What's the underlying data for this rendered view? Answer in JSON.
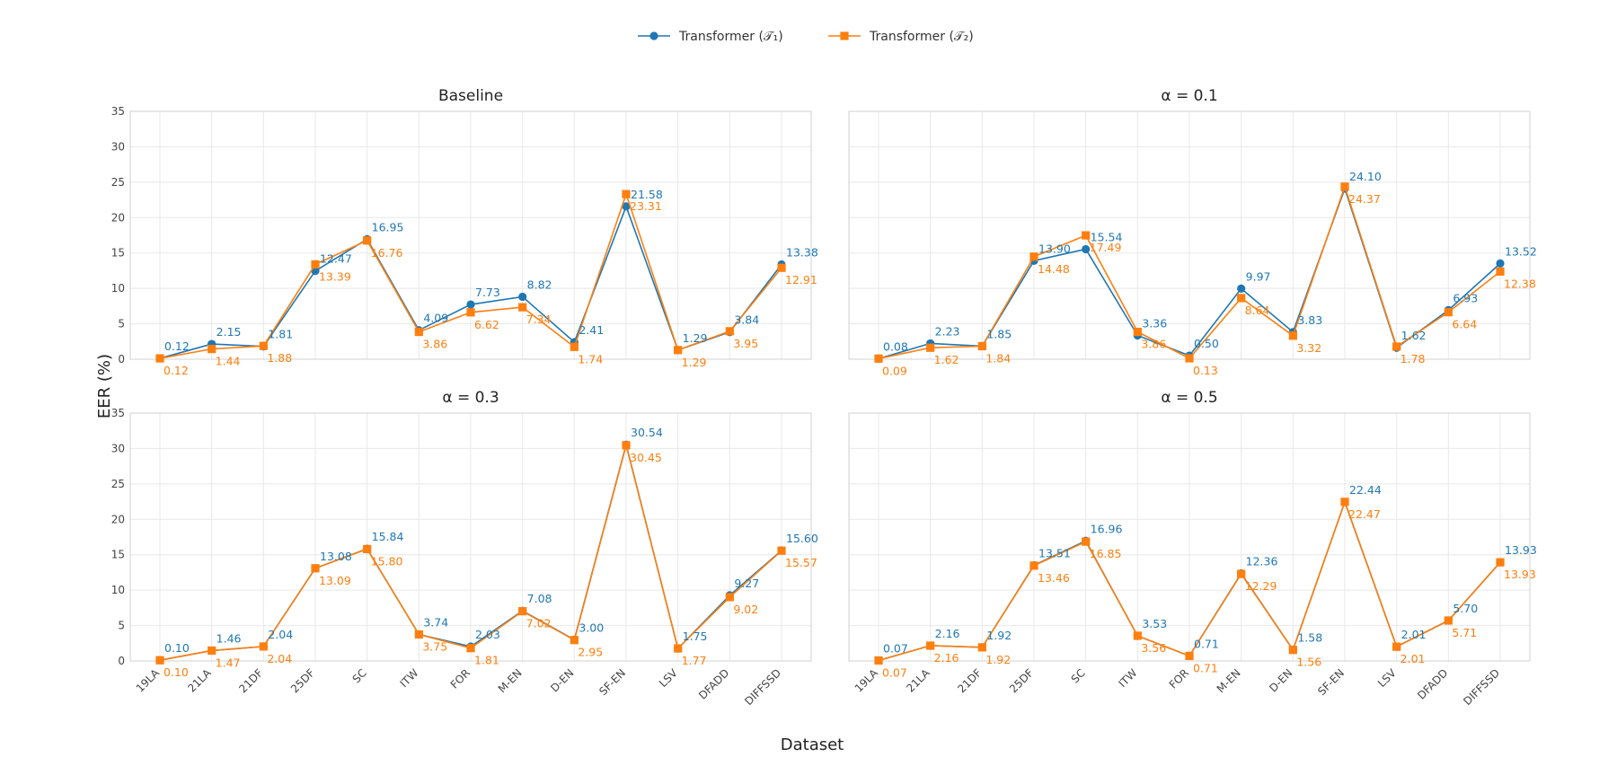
{
  "chart_data": {
    "type": "line",
    "ylabel": "EER (%)",
    "xlabel": "Dataset",
    "ylim": [
      0,
      35
    ],
    "yticks": [
      0,
      5,
      10,
      15,
      20,
      25,
      30,
      35
    ],
    "grid": true,
    "legend_position": "top-center",
    "categories": [
      "19LA",
      "21LA",
      "21DF",
      "25DF",
      "SC",
      "ITW",
      "FOR",
      "M-EN",
      "D-EN",
      "SF-EN",
      "LSV",
      "DFADD",
      "DIFFSSD"
    ],
    "series_styles": [
      {
        "label": "Transformer (𝒯₁)",
        "color": "#1f77b4",
        "marker": "circle"
      },
      {
        "label": "Transformer (𝒯₂)",
        "color": "#ff7f0e",
        "marker": "square"
      }
    ],
    "panels": [
      {
        "title": "Baseline",
        "series": [
          {
            "values": [
              0.12,
              2.15,
              1.81,
              12.47,
              16.95,
              4.09,
              7.73,
              8.82,
              2.41,
              21.58,
              1.29,
              3.84,
              13.38
            ],
            "labels": [
              "0.12",
              "2.15",
              "1.81",
              "12.47",
              "16.95",
              "4.09",
              "7.73",
              "8.82",
              "2.41",
              "21.58",
              "1.29",
              "3.84",
              "13.38"
            ]
          },
          {
            "values": [
              0.12,
              1.44,
              1.88,
              13.39,
              16.76,
              3.86,
              6.62,
              7.34,
              1.74,
              23.31,
              1.29,
              3.95,
              12.91
            ],
            "labels": [
              "0.12",
              "1.44",
              "1.88",
              "13.39",
              "16.76",
              "3.86",
              "6.62",
              "7.34",
              "1.74",
              "23.31",
              "1.29",
              "3.95",
              "12.91"
            ]
          }
        ]
      },
      {
        "title": "α = 0.1",
        "series": [
          {
            "values": [
              0.08,
              2.23,
              1.85,
              13.9,
              15.54,
              3.36,
              0.5,
              9.97,
              3.83,
              24.1,
              1.62,
              6.93,
              13.52
            ],
            "labels": [
              "0.08",
              "2.23",
              "1.85",
              "13.90",
              "15.54",
              "3.36",
              "0.50",
              "9.97",
              "3.83",
              "24.10",
              "1.62",
              "6.93",
              "13.52"
            ]
          },
          {
            "values": [
              0.09,
              1.62,
              1.84,
              14.48,
              17.49,
              3.86,
              0.13,
              8.64,
              3.32,
              24.37,
              1.78,
              6.64,
              12.38
            ],
            "labels": [
              "0.09",
              "1.62",
              "1.84",
              "14.48",
              "17.49",
              "3.86",
              "0.13",
              "8.64",
              "3.32",
              "24.37",
              "1.78",
              "6.64",
              "12.38"
            ]
          }
        ]
      },
      {
        "title": "α = 0.3",
        "series": [
          {
            "values": [
              0.1,
              1.46,
              2.04,
              13.08,
              15.84,
              3.74,
              2.03,
              7.08,
              3.0,
              30.54,
              1.75,
              9.27,
              15.6
            ],
            "labels": [
              "0.10",
              "1.46",
              "2.04",
              "13.08",
              "15.84",
              "3.74",
              "2.03",
              "7.08",
              "3.00",
              "30.54",
              "1.75",
              "9.27",
              "15.60"
            ]
          },
          {
            "values": [
              0.1,
              1.47,
              2.04,
              13.09,
              15.8,
              3.75,
              1.81,
              7.02,
              2.95,
              30.45,
              1.77,
              9.02,
              15.57
            ],
            "labels": [
              "0.10",
              "1.47",
              "2.04",
              "13.09",
              "15.80",
              "3.75",
              "1.81",
              "7.02",
              "2.95",
              "30.45",
              "1.77",
              "9.02",
              "15.57"
            ]
          }
        ]
      },
      {
        "title": "α = 0.5",
        "series": [
          {
            "values": [
              0.07,
              2.16,
              1.92,
              13.51,
              16.96,
              3.53,
              0.71,
              12.36,
              1.58,
              22.44,
              2.01,
              5.7,
              13.93
            ],
            "labels": [
              "0.07",
              "2.16",
              "1.92",
              "13.51",
              "16.96",
              "3.53",
              "0.71",
              "12.36",
              "1.58",
              "22.44",
              "2.01",
              "5.70",
              "13.93"
            ]
          },
          {
            "values": [
              0.07,
              2.16,
              1.92,
              13.46,
              16.85,
              3.56,
              0.71,
              12.29,
              1.56,
              22.47,
              2.01,
              5.71,
              13.93
            ],
            "labels": [
              "0.07",
              "2.16",
              "1.92",
              "13.46",
              "16.85",
              "3.56",
              "0.71",
              "12.29",
              "1.56",
              "22.47",
              "2.01",
              "5.71",
              "13.93"
            ]
          }
        ]
      }
    ]
  }
}
